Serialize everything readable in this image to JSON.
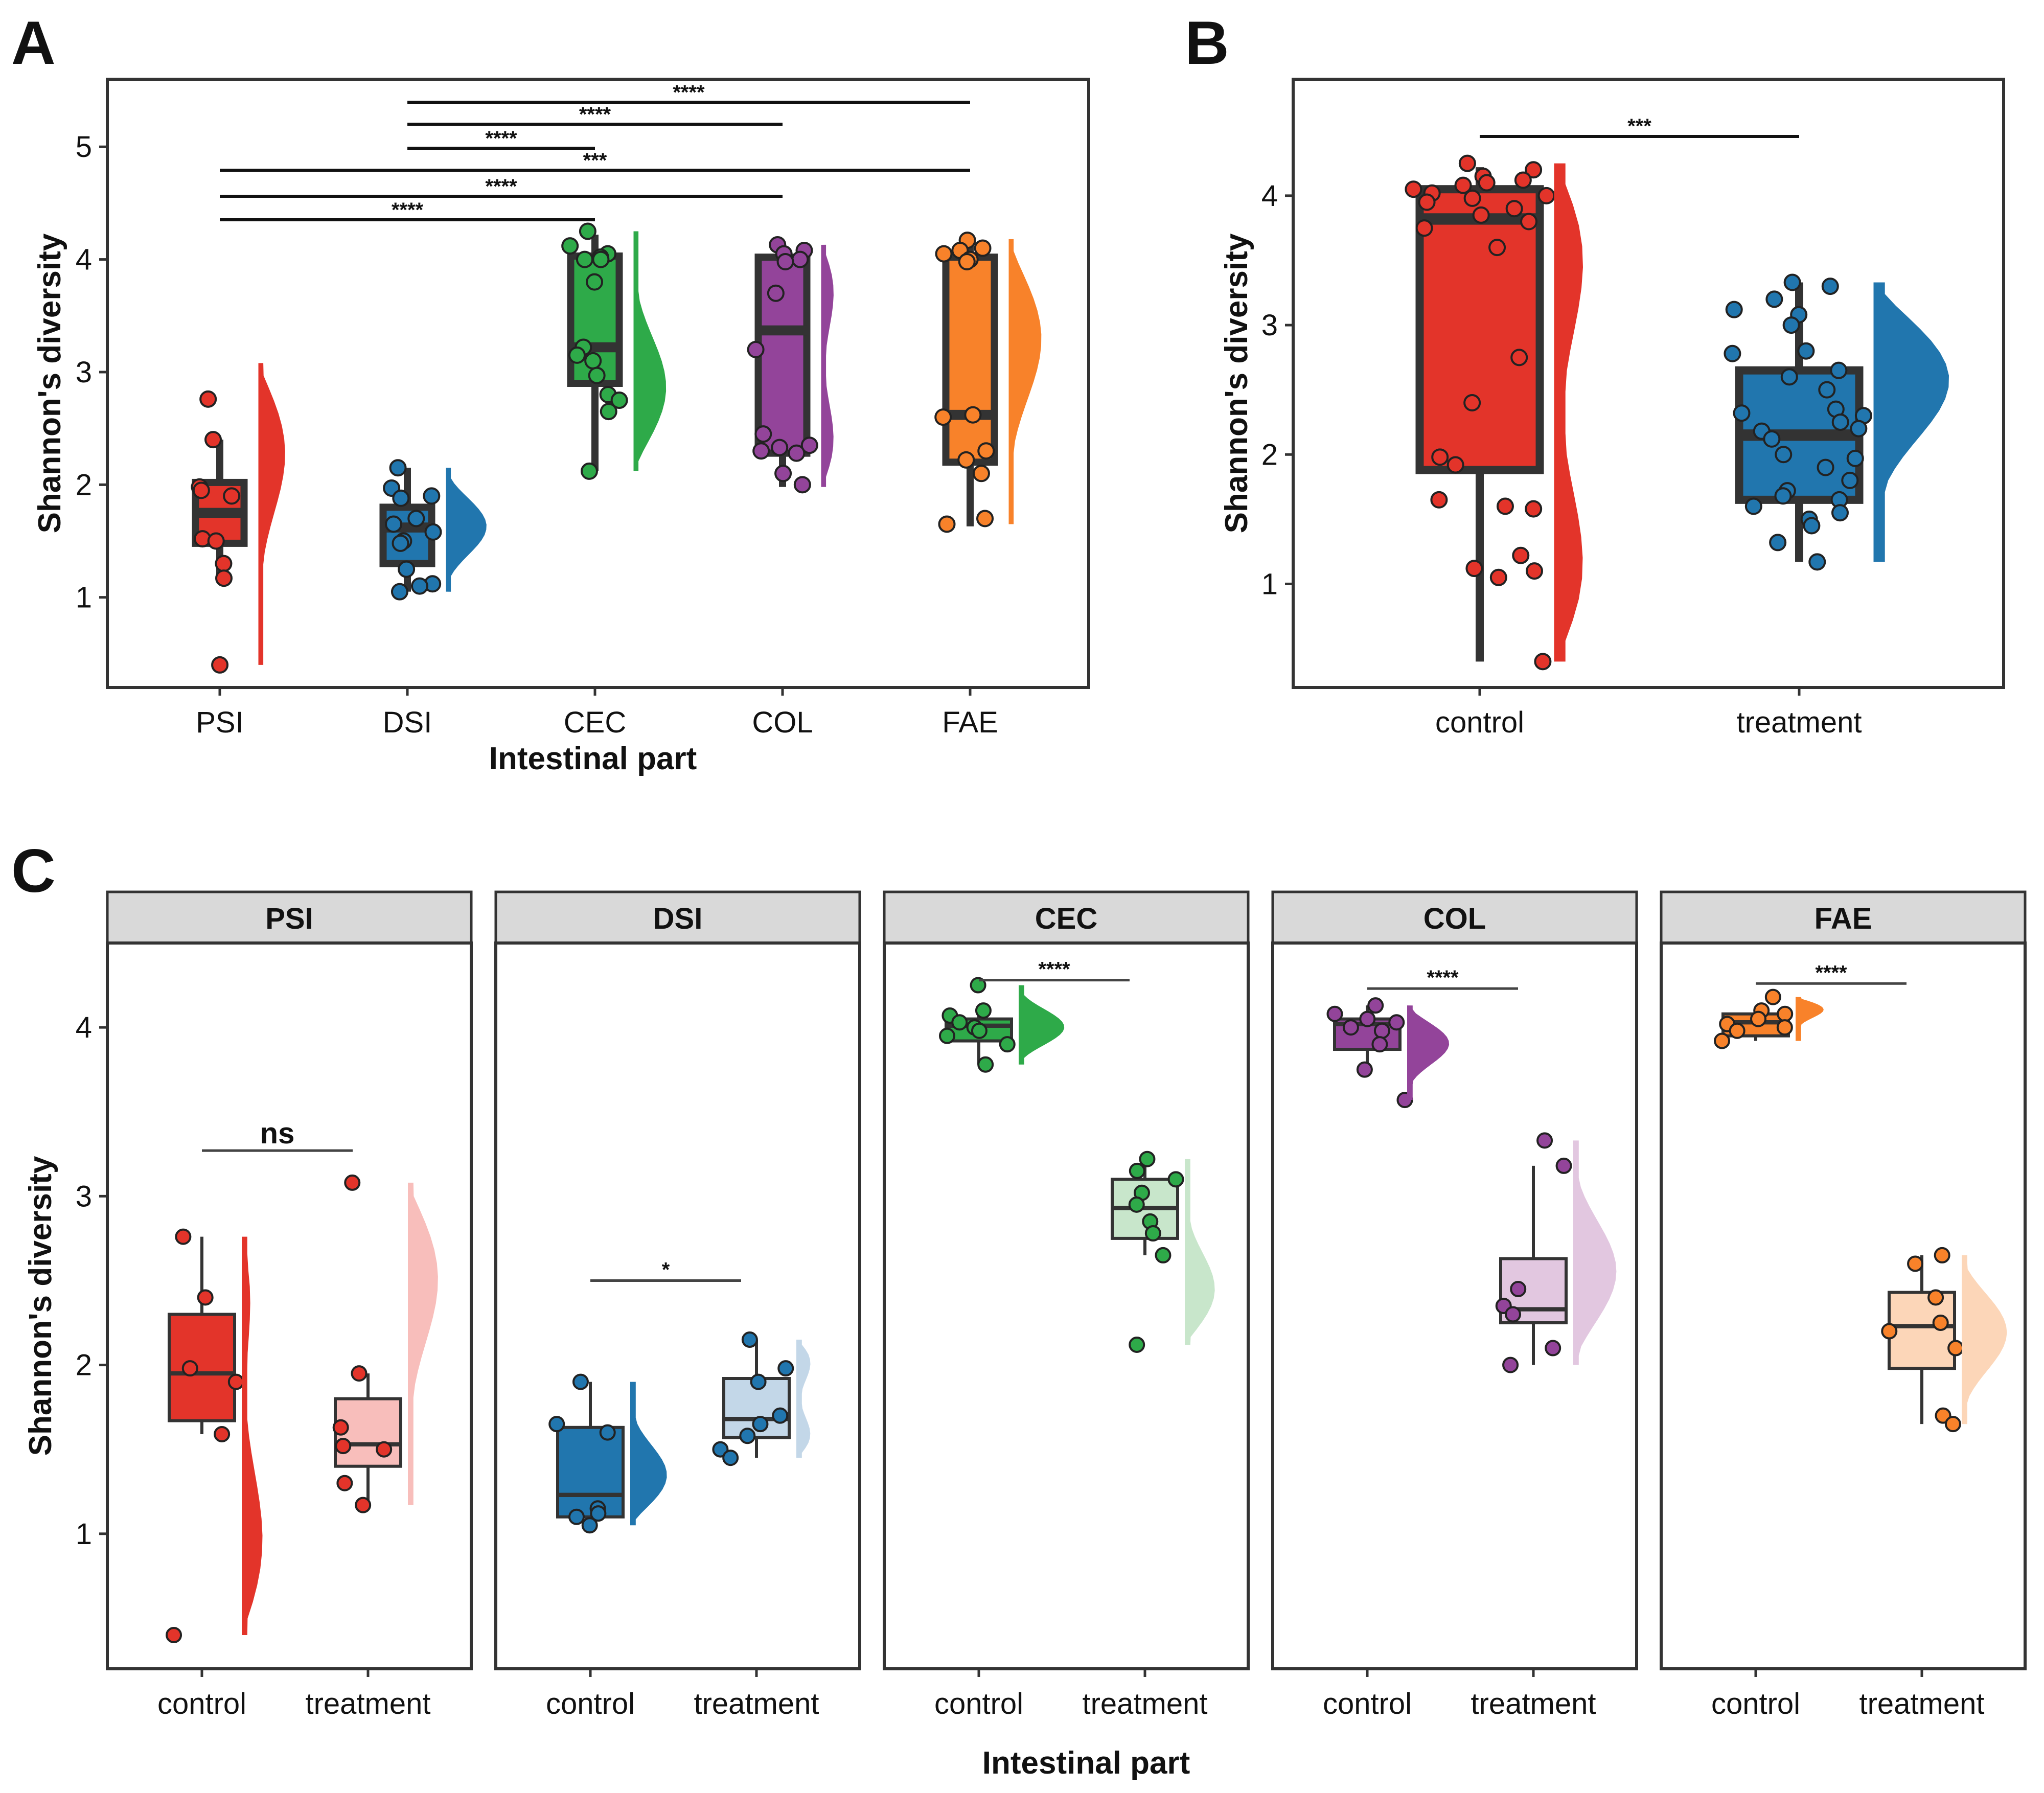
{
  "colors": {
    "PSI": "#E3342A",
    "DSI": "#2176AE",
    "CEC": "#2EAA49",
    "COL": "#93449A",
    "FAE": "#F8822A",
    "PSI_light": "#F8BEBB",
    "DSI_light": "#C3D7E8",
    "CEC_light": "#C8E6CB",
    "COL_light": "#E2C7E0",
    "FAE_light": "#FCD6B8",
    "control": "#E3342A",
    "treatment": "#2176AE"
  },
  "chart_data": [
    {
      "panel": "A",
      "type": "box",
      "xlabel": "Intestinal part",
      "ylabel": "Shannon's diversity",
      "ylim": [
        0.2,
        5.6
      ],
      "yticks": [
        "1",
        "2",
        "3",
        "4",
        "5"
      ],
      "categories": [
        "PSI",
        "DSI",
        "CEC",
        "COL",
        "FAE"
      ],
      "boxes": [
        {
          "group": "PSI",
          "q1": 1.48,
          "median": 1.75,
          "q3": 2.02,
          "whisker_low": 1.17,
          "whisker_high": 2.4,
          "points": [
            2.76,
            2.4,
            1.98,
            1.95,
            1.9,
            1.52,
            1.5,
            1.3,
            1.17,
            0.4
          ],
          "density_range": [
            0.4,
            3.08
          ]
        },
        {
          "group": "DSI",
          "q1": 1.3,
          "median": 1.62,
          "q3": 1.8,
          "whisker_low": 1.05,
          "whisker_high": 2.15,
          "points": [
            2.15,
            1.97,
            1.9,
            1.88,
            1.7,
            1.65,
            1.58,
            1.5,
            1.48,
            1.25,
            1.12,
            1.1,
            1.05
          ],
          "density_range": [
            1.05,
            2.15
          ]
        },
        {
          "group": "CEC",
          "q1": 2.9,
          "median": 3.22,
          "q3": 4.03,
          "whisker_low": 2.12,
          "whisker_high": 4.22,
          "points": [
            4.25,
            4.12,
            4.05,
            4.02,
            4.0,
            4.0,
            3.8,
            3.22,
            3.15,
            3.1,
            2.97,
            2.8,
            2.75,
            2.65,
            2.12
          ],
          "density_range": [
            2.12,
            4.25
          ]
        },
        {
          "group": "COL",
          "q1": 2.28,
          "median": 3.37,
          "q3": 4.02,
          "whisker_low": 1.98,
          "whisker_high": 4.13,
          "points": [
            4.13,
            4.08,
            4.05,
            4.0,
            3.98,
            3.7,
            3.2,
            2.45,
            2.35,
            2.33,
            2.3,
            2.28,
            2.1,
            2.0
          ],
          "density_range": [
            1.98,
            4.13
          ]
        },
        {
          "group": "FAE",
          "q1": 2.2,
          "median": 2.62,
          "q3": 4.02,
          "whisker_low": 1.63,
          "whisker_high": 4.17,
          "points": [
            4.17,
            4.1,
            4.08,
            4.05,
            4.0,
            3.98,
            2.62,
            2.6,
            2.3,
            2.22,
            2.1,
            1.7,
            1.65
          ],
          "density_range": [
            1.65,
            4.18
          ]
        }
      ],
      "comparisons": [
        {
          "from": "DSI",
          "to": "FAE",
          "label": "****"
        },
        {
          "from": "DSI",
          "to": "COL",
          "label": "****"
        },
        {
          "from": "DSI",
          "to": "CEC",
          "label": "****"
        },
        {
          "from": "PSI",
          "to": "FAE",
          "label": "***"
        },
        {
          "from": "PSI",
          "to": "COL",
          "label": "****"
        },
        {
          "from": "PSI",
          "to": "CEC",
          "label": "****"
        }
      ]
    },
    {
      "panel": "B",
      "type": "box",
      "xlabel": "",
      "ylabel": "Shannon's diversity",
      "ylim": [
        0.2,
        4.9
      ],
      "yticks": [
        "1",
        "2",
        "3",
        "4"
      ],
      "categories": [
        "control",
        "treatment"
      ],
      "boxes": [
        {
          "group": "control",
          "q1": 1.88,
          "median": 3.82,
          "q3": 4.05,
          "whisker_low": 0.4,
          "whisker_high": 4.22,
          "points": [
            4.25,
            4.2,
            4.15,
            4.12,
            4.1,
            4.08,
            4.05,
            4.02,
            4.0,
            3.98,
            3.95,
            3.9,
            3.85,
            3.8,
            3.75,
            3.6,
            2.75,
            2.4,
            1.98,
            1.92,
            1.65,
            1.6,
            1.58,
            1.22,
            1.12,
            1.1,
            1.05,
            0.4
          ],
          "density_range": [
            0.4,
            4.25
          ]
        },
        {
          "group": "treatment",
          "q1": 1.65,
          "median": 2.15,
          "q3": 2.65,
          "whisker_low": 1.17,
          "whisker_high": 3.33,
          "points": [
            3.33,
            3.3,
            3.2,
            3.12,
            3.08,
            3.0,
            2.8,
            2.78,
            2.65,
            2.6,
            2.5,
            2.35,
            2.32,
            2.3,
            2.25,
            2.2,
            2.18,
            2.12,
            2.0,
            1.97,
            1.9,
            1.8,
            1.72,
            1.68,
            1.65,
            1.6,
            1.55,
            1.5,
            1.45,
            1.32,
            1.17
          ],
          "density_range": [
            1.17,
            3.33
          ]
        }
      ],
      "comparisons": [
        {
          "from": "control",
          "to": "treatment",
          "label": "***"
        }
      ]
    },
    {
      "panel": "C",
      "type": "box",
      "xlabel": "Intestinal part",
      "ylabel": "Shannon's diversity",
      "ylim": [
        0.2,
        4.5
      ],
      "yticks": [
        "1",
        "2",
        "3",
        "4"
      ],
      "facets": [
        {
          "strip": "PSI",
          "ticks": [
            "control",
            "treatment"
          ],
          "sig": "ns",
          "sig_y": 3.27,
          "boxes": [
            {
              "group": "control",
              "q1": 1.67,
              "median": 1.95,
              "q3": 2.3,
              "whisker_low": 1.59,
              "whisker_high": 2.76,
              "points": [
                2.76,
                2.4,
                1.98,
                1.9,
                1.59,
                0.4
              ],
              "density_range": [
                0.4,
                2.76
              ]
            },
            {
              "group": "treatment",
              "q1": 1.4,
              "median": 1.53,
              "q3": 1.8,
              "whisker_low": 1.17,
              "whisker_high": 1.95,
              "points": [
                3.08,
                1.95,
                1.63,
                1.52,
                1.5,
                1.3,
                1.17
              ],
              "density_range": [
                1.17,
                3.08
              ]
            }
          ]
        },
        {
          "strip": "DSI",
          "ticks": [
            "control",
            "treatment"
          ],
          "sig": "*",
          "sig_y": 2.5,
          "boxes": [
            {
              "group": "control",
              "q1": 1.1,
              "median": 1.23,
              "q3": 1.63,
              "whisker_low": 1.05,
              "whisker_high": 1.9,
              "points": [
                1.9,
                1.65,
                1.6,
                1.15,
                1.12,
                1.1,
                1.05
              ],
              "density_range": [
                1.05,
                1.9
              ]
            },
            {
              "group": "treatment",
              "q1": 1.57,
              "median": 1.68,
              "q3": 1.92,
              "whisker_low": 1.45,
              "whisker_high": 2.15,
              "points": [
                2.15,
                1.98,
                1.9,
                1.7,
                1.65,
                1.58,
                1.5,
                1.45
              ],
              "density_range": [
                1.45,
                2.15
              ]
            }
          ]
        },
        {
          "strip": "CEC",
          "ticks": [
            "control",
            "treatment"
          ],
          "sig": "****",
          "sig_y": 4.28,
          "boxes": [
            {
              "group": "control",
              "q1": 3.92,
              "median": 4.01,
              "q3": 4.05,
              "whisker_low": 3.78,
              "whisker_high": 4.13,
              "points": [
                4.25,
                4.1,
                4.07,
                4.03,
                4.0,
                3.98,
                3.95,
                3.9,
                3.78
              ],
              "density_range": [
                3.78,
                4.25
              ]
            },
            {
              "group": "treatment",
              "q1": 2.75,
              "median": 2.93,
              "q3": 3.1,
              "whisker_low": 2.65,
              "whisker_high": 3.22,
              "points": [
                3.22,
                3.15,
                3.1,
                3.02,
                2.95,
                2.85,
                2.78,
                2.65,
                2.12
              ],
              "density_range": [
                2.12,
                3.22
              ]
            }
          ]
        },
        {
          "strip": "COL",
          "ticks": [
            "control",
            "treatment"
          ],
          "sig": "****",
          "sig_y": 4.23,
          "boxes": [
            {
              "group": "control",
              "q1": 3.87,
              "median": 4.02,
              "q3": 4.05,
              "whisker_low": 3.75,
              "whisker_high": 4.13,
              "points": [
                4.13,
                4.08,
                4.05,
                4.03,
                4.0,
                3.98,
                3.9,
                3.75,
                3.57
              ],
              "density_range": [
                3.57,
                4.13
              ]
            },
            {
              "group": "treatment",
              "q1": 2.25,
              "median": 2.33,
              "q3": 2.63,
              "whisker_low": 2.0,
              "whisker_high": 3.18,
              "points": [
                3.33,
                3.18,
                2.45,
                2.35,
                2.3,
                2.1,
                2.0
              ],
              "density_range": [
                2.0,
                3.33
              ]
            }
          ]
        },
        {
          "strip": "FAE",
          "ticks": [
            "control",
            "treatment"
          ],
          "sig": "****",
          "sig_y": 4.26,
          "boxes": [
            {
              "group": "control",
              "q1": 3.95,
              "median": 4.03,
              "q3": 4.08,
              "whisker_low": 3.92,
              "whisker_high": 4.12,
              "points": [
                4.18,
                4.1,
                4.08,
                4.05,
                4.02,
                4.0,
                3.98,
                3.92
              ],
              "density_range": [
                3.92,
                4.18
              ]
            },
            {
              "group": "treatment",
              "q1": 1.98,
              "median": 2.23,
              "q3": 2.43,
              "whisker_low": 1.65,
              "whisker_high": 2.65,
              "points": [
                2.65,
                2.6,
                2.4,
                2.25,
                2.2,
                2.1,
                1.7,
                1.65
              ],
              "density_range": [
                1.65,
                2.65
              ]
            }
          ]
        }
      ]
    }
  ],
  "labels": {
    "panel_a": "A",
    "panel_b": "B",
    "panel_c": "C"
  }
}
